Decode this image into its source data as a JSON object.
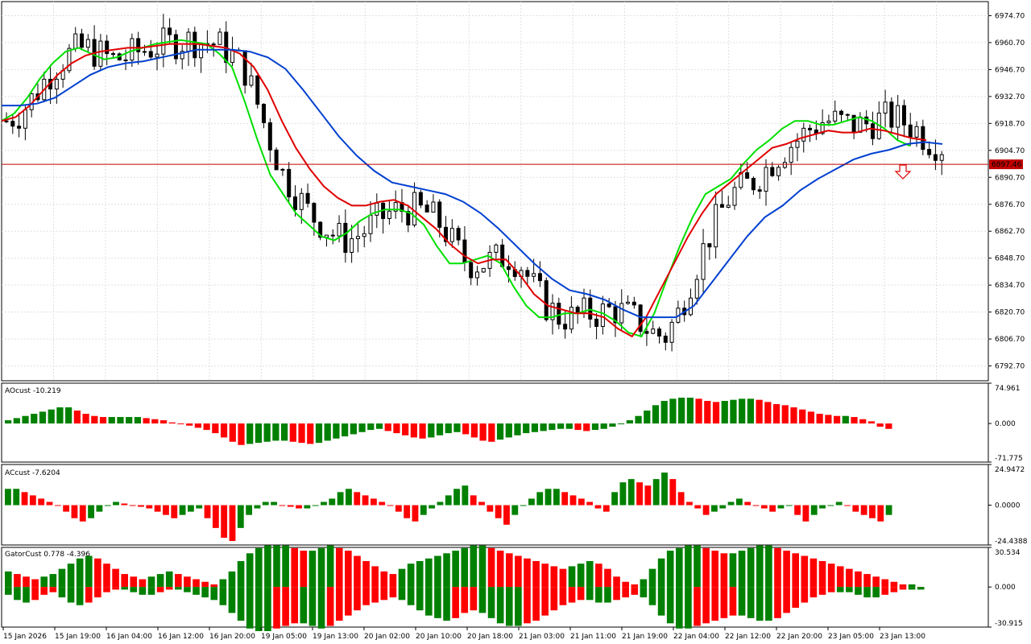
{
  "chart_data": [
    {
      "type": "candlestick",
      "symbol_note": "",
      "price_axis_ticks": [
        "6974.70",
        "6960.70",
        "6946.70",
        "6932.70",
        "6918.70",
        "6904.70",
        "6890.70",
        "6876.70",
        "6862.70",
        "6848.70",
        "6834.70",
        "6820.70",
        "6806.70",
        "6792.70"
      ],
      "ylim": [
        6785,
        6982
      ],
      "current_price_label": "6897.46",
      "current_price": 6897.46,
      "time_axis_labels": [
        "15 Jan 2026",
        "15 Jan 19:00",
        "16 Jan 04:00",
        "16 Jan 12:00",
        "16 Jan 20:00",
        "19 Jan 05:00",
        "19 Jan 13:00",
        "20 Jan 02:00",
        "20 Jan 10:00",
        "20 Jan 18:00",
        "21 Jan 03:00",
        "21 Jan 11:00",
        "21 Jan 19:00",
        "22 Jan 04:00",
        "22 Jan 12:00",
        "22 Jan 20:00",
        "23 Jan 05:00",
        "23 Jan 13:00"
      ],
      "series": [
        {
          "name": "",
          "color": "#00e000",
          "values": [
            6920,
            6924,
            6932,
            6942,
            6950,
            6956,
            6958,
            6955,
            6952,
            6953,
            6956,
            6958,
            6960,
            6961,
            6962,
            6961,
            6960,
            6955,
            6948,
            6930,
            6910,
            6892,
            6882,
            6872,
            6866,
            6860,
            6858,
            6862,
            6868,
            6872,
            6874,
            6874,
            6872,
            6866,
            6855,
            6846,
            6846,
            6848,
            6850,
            6846,
            6834,
            6824,
            6818,
            6818,
            6820,
            6820,
            6822,
            6820,
            6816,
            6810,
            6808,
            6820,
            6838,
            6855,
            6870,
            6882,
            6886,
            6890,
            6898,
            6905,
            6910,
            6916,
            6920,
            6920,
            6918,
            6918,
            6920,
            6922,
            6920,
            6916,
            6910,
            6907
          ]
        },
        {
          "name": "",
          "color": "#e00000",
          "values": [
            6920,
            6922,
            6928,
            6936,
            6944,
            6950,
            6954,
            6956,
            6957,
            6958,
            6958,
            6959,
            6960,
            6960,
            6960,
            6959,
            6958,
            6955,
            6948,
            6936,
            6920,
            6906,
            6895,
            6886,
            6880,
            6876,
            6876,
            6878,
            6879,
            6876,
            6870,
            6864,
            6856,
            6850,
            6846,
            6848,
            6848,
            6840,
            6830,
            6824,
            6822,
            6820,
            6820,
            6818,
            6812,
            6808,
            6818,
            6832,
            6846,
            6860,
            6872,
            6882,
            6888,
            6894,
            6900,
            6906,
            6908,
            6911,
            6913,
            6915,
            6914,
            6914,
            6916,
            6915,
            6913,
            6911,
            6910
          ]
        },
        {
          "name": "",
          "color": "#0040d0",
          "values": [
            6928,
            6928,
            6929,
            6932,
            6938,
            6944,
            6948,
            6950,
            6951,
            6953,
            6955,
            6957,
            6957,
            6957,
            6956,
            6953,
            6947,
            6936,
            6924,
            6912,
            6902,
            6894,
            6888,
            6886,
            6884,
            6882,
            6878,
            6872,
            6864,
            6855,
            6846,
            6838,
            6832,
            6830,
            6827,
            6822,
            6818,
            6818,
            6818,
            6824,
            6836,
            6848,
            6860,
            6870,
            6876,
            6884,
            6890,
            6895,
            6900,
            6903,
            6905,
            6908,
            6909,
            6908
          ]
        }
      ]
    },
    {
      "type": "bar",
      "indicator_label": "AOcust -10.219",
      "ticks": [
        "74.961",
        "0.000",
        "-71.775"
      ],
      "ylim": [
        -71.775,
        74.961
      ],
      "values": [
        6,
        10,
        14,
        18,
        22,
        26,
        30,
        30,
        24,
        18,
        14,
        12,
        12,
        12,
        12,
        12,
        10,
        8,
        6,
        2,
        0,
        -4,
        -8,
        -12,
        -18,
        -26,
        -34,
        -40,
        -38,
        -36,
        -34,
        -32,
        -32,
        -34,
        -36,
        -38,
        -36,
        -32,
        -28,
        -24,
        -20,
        -16,
        -12,
        -10,
        -14,
        -18,
        -22,
        -26,
        -28,
        -26,
        -22,
        -18,
        -16,
        -20,
        -26,
        -32,
        -34,
        -30,
        -26,
        -22,
        -18,
        -16,
        -14,
        -12,
        -10,
        -10,
        -12,
        -14,
        -12,
        -10,
        -6,
        0,
        6,
        14,
        24,
        34,
        42,
        46,
        48,
        48,
        46,
        42,
        40,
        42,
        44,
        46,
        46,
        44,
        40,
        36,
        34,
        30,
        26,
        22,
        18,
        16,
        14,
        14,
        12,
        8,
        4,
        -6,
        -10
      ]
    },
    {
      "type": "bar",
      "indicator_label": "ACcust -7.6204",
      "ticks": [
        "24.9472",
        "0.0000",
        "-24.4388"
      ],
      "ylim": [
        -24.4388,
        24.9472
      ],
      "values": [
        10,
        10,
        8,
        6,
        4,
        2,
        0,
        -4,
        -8,
        -10,
        -8,
        -4,
        0,
        2,
        1,
        0,
        -1,
        -2,
        -4,
        -6,
        -8,
        -6,
        -4,
        -2,
        -8,
        -14,
        -20,
        -22,
        -14,
        -6,
        -2,
        2,
        2,
        0,
        -1,
        -2,
        -2,
        0,
        2,
        4,
        8,
        10,
        8,
        6,
        4,
        2,
        0,
        -4,
        -8,
        -10,
        -6,
        -2,
        2,
        6,
        10,
        12,
        6,
        2,
        -4,
        -8,
        -12,
        -6,
        0,
        4,
        8,
        10,
        10,
        8,
        6,
        4,
        2,
        -2,
        -4,
        8,
        14,
        16,
        14,
        12,
        16,
        20,
        16,
        8,
        2,
        -2,
        -6,
        -4,
        -2,
        2,
        4,
        2,
        0,
        -2,
        -4,
        -2,
        0,
        -6,
        -10,
        -6,
        -2,
        0,
        2,
        0,
        -4,
        -6,
        -8,
        -10,
        -6
      ]
    },
    {
      "type": "bar",
      "indicator_label": "GatorCust 0.778 -4.396",
      "ticks": [
        "30.534",
        "0.000",
        "-30.915"
      ],
      "ylim": [
        -30.915,
        30.534
      ],
      "upper_values": [
        12,
        10,
        8,
        6,
        8,
        10,
        14,
        18,
        22,
        24,
        22,
        18,
        14,
        10,
        8,
        6,
        8,
        10,
        12,
        10,
        8,
        6,
        4,
        2,
        6,
        12,
        20,
        26,
        30,
        32,
        32,
        32,
        30,
        28,
        28,
        30,
        32,
        30,
        28,
        24,
        20,
        16,
        12,
        10,
        14,
        18,
        20,
        22,
        24,
        26,
        28,
        30,
        32,
        32,
        30,
        28,
        26,
        24,
        22,
        20,
        18,
        16,
        14,
        16,
        18,
        20,
        18,
        14,
        8,
        4,
        2,
        6,
        14,
        22,
        28,
        30,
        32,
        32,
        30,
        28,
        26,
        26,
        28,
        30,
        32,
        32,
        30,
        28,
        26,
        24,
        22,
        20,
        18,
        16,
        14,
        12,
        10,
        8,
        6,
        4,
        2,
        2,
        0
      ],
      "lower_values": [
        -6,
        -10,
        -12,
        -10,
        -6,
        -4,
        -8,
        -12,
        -14,
        -12,
        -8,
        -4,
        -2,
        -2,
        -4,
        -6,
        -6,
        -4,
        -2,
        -2,
        -4,
        -6,
        -8,
        -10,
        -14,
        -20,
        -26,
        -32,
        -34,
        -34,
        -32,
        -30,
        -28,
        -28,
        -30,
        -32,
        -30,
        -26,
        -22,
        -18,
        -14,
        -12,
        -10,
        -8,
        -10,
        -14,
        -18,
        -22,
        -24,
        -26,
        -24,
        -20,
        -18,
        -20,
        -24,
        -28,
        -30,
        -30,
        -28,
        -26,
        -22,
        -18,
        -14,
        -12,
        -10,
        -10,
        -12,
        -12,
        -10,
        -8,
        -6,
        -8,
        -14,
        -22,
        -28,
        -32,
        -32,
        -30,
        -28,
        -26,
        -24,
        -22,
        -22,
        -24,
        -26,
        -26,
        -24,
        -20,
        -16,
        -12,
        -8,
        -6,
        -4,
        -4,
        -4,
        -6,
        -8,
        -8,
        -6,
        -4,
        -2,
        -2,
        -2
      ]
    }
  ]
}
